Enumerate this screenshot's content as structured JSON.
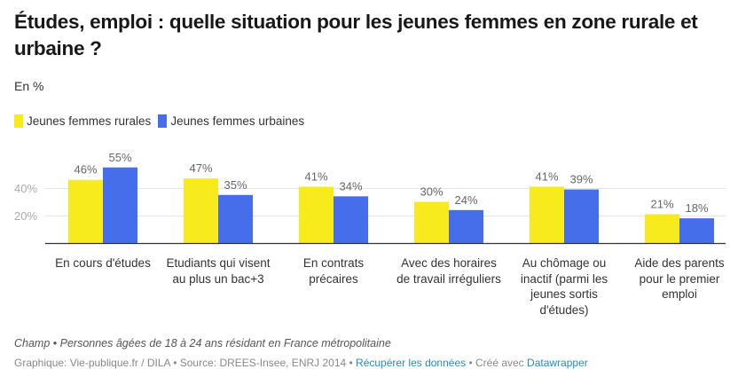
{
  "header": {
    "title": "Études, emploi : quelle situation pour les jeunes femmes en zone rurale et urbaine ?",
    "subtitle": "En %"
  },
  "legend": [
    {
      "label": "Jeunes femmes rurales",
      "color": "#f7eb1e"
    },
    {
      "label": "Jeunes femmes urbaines",
      "color": "#476eea"
    }
  ],
  "chart_data": {
    "type": "bar",
    "title": "Études, emploi : quelle situation pour les jeunes femmes en zone rurale et urbaine ?",
    "subtitle": "En %",
    "xlabel": "",
    "ylabel": "",
    "ylim": [
      0,
      60
    ],
    "yticks": [
      20,
      40
    ],
    "ytick_labels": [
      "20%",
      "40%"
    ],
    "grid": true,
    "legend_position": "top-left",
    "categories": [
      "En cours d'études",
      "Etudiants qui visent au plus un bac+3",
      "En contrats précaires",
      "Avec des horaires de travail irréguliers",
      "Au chômage ou inactif (parmi les jeunes sortis d'études)",
      "Aide des parents pour le premier emploi"
    ],
    "series": [
      {
        "name": "Jeunes femmes rurales",
        "color": "#f7eb1e",
        "values": [
          46,
          47,
          41,
          30,
          41,
          21
        ],
        "labels": [
          "46%",
          "47%",
          "41%",
          "30%",
          "41%",
          "21%"
        ]
      },
      {
        "name": "Jeunes femmes urbaines",
        "color": "#476eea",
        "values": [
          55,
          35,
          34,
          24,
          39,
          18
        ],
        "labels": [
          "55%",
          "35%",
          "34%",
          "24%",
          "39%",
          "18%"
        ]
      }
    ]
  },
  "categories_display": [
    "En cours d'études",
    "Etudiants qui visent au plus un bac+3",
    "En contrats précaires",
    "Avec des horaires de travail irréguliers",
    "Au chômage ou inactif (parmi les jeunes sortis d'études)",
    "Aide des parents pour le premier emploi"
  ],
  "footer": {
    "note": "Champ • Personnes âgées de 18 à 24 ans résidant en France métropolitaine",
    "source_prefix": "Graphique: Vie-publique.fr / DILA • Source: DREES-Insee, ENRJ 2014 • ",
    "data_link": "Récupérer les données",
    "made_with": " • Créé avec ",
    "tool_link": "Datawrapper"
  }
}
